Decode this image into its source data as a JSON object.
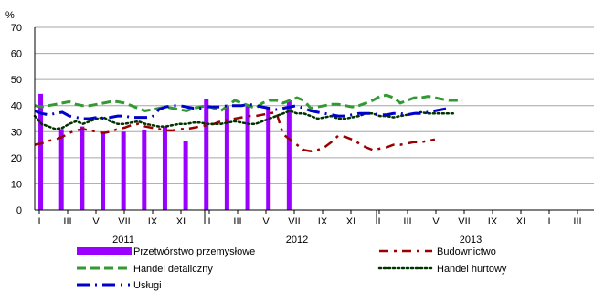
{
  "chart_data": {
    "type": "bar+line",
    "ylabel": "%",
    "ylim": [
      0,
      70
    ],
    "yticks": [
      0,
      10,
      20,
      30,
      40,
      50,
      60,
      70
    ],
    "grid": "horizontal",
    "month_ticks": [
      "I",
      "III",
      "V",
      "VII",
      "IX",
      "XI",
      "I",
      "III",
      "V",
      "VII",
      "IX",
      "XI",
      "I",
      "III",
      "V",
      "VII",
      "IX",
      "XI",
      "I",
      "III"
    ],
    "years": [
      "2011",
      "2012",
      "2013"
    ],
    "legend_position": "bottom",
    "bar_series": {
      "name": "Przetwórstwo przemysłowe",
      "color": "#9900ff",
      "points": [
        {
          "x": 1,
          "value": 44.5
        },
        {
          "x": 4,
          "value": 31
        },
        {
          "x": 7,
          "value": 32
        },
        {
          "x": 10,
          "value": 30
        },
        {
          "x": 13,
          "value": 30
        },
        {
          "x": 16,
          "value": 30.5
        },
        {
          "x": 19,
          "value": 32
        },
        {
          "x": 22,
          "value": 26.5
        },
        {
          "x": 25,
          "value": 42.5
        },
        {
          "x": 28,
          "value": 40
        },
        {
          "x": 31,
          "value": 40.5
        },
        {
          "x": 34,
          "value": 39.5
        },
        {
          "x": 37,
          "value": 42
        }
      ]
    },
    "line_series": [
      {
        "name": "Budownictwo",
        "color": "#990000",
        "dash": "10,6,3,6",
        "width": 2.5,
        "values": [
          25,
          25.5,
          26.5,
          27,
          28,
          29.5,
          30.5,
          31,
          30.5,
          30,
          29.5,
          30,
          31,
          31.5,
          32.5,
          33,
          32,
          31.5,
          31,
          30.5,
          30.5,
          31,
          31,
          31.5,
          32,
          32.5,
          33,
          34,
          34.5,
          35,
          35.5,
          36,
          36,
          36.5,
          37,
          37.5,
          29,
          27,
          25,
          23,
          22.5,
          23,
          24,
          26,
          28.5,
          28,
          27,
          25.5,
          24,
          23,
          23.5,
          24,
          25,
          25,
          25.5,
          26,
          26,
          26.5,
          27
        ]
      },
      {
        "name": "Handel detaliczny",
        "color": "#339933",
        "dash": "10,5",
        "width": 3,
        "values": [
          40,
          39.5,
          40,
          40.5,
          41,
          41.5,
          40.5,
          40,
          40,
          40.5,
          41,
          41.5,
          41.5,
          41,
          40,
          39,
          38,
          38.5,
          39,
          39.5,
          39,
          38.5,
          38,
          39,
          39.5,
          40,
          39,
          38,
          40,
          42,
          41,
          40,
          39,
          41,
          42,
          42,
          41,
          42,
          43,
          42,
          39,
          39.5,
          40,
          40.5,
          40.5,
          40,
          39.5,
          40,
          41,
          42,
          43.5,
          44,
          43,
          41,
          42,
          43,
          43,
          43.5,
          43,
          42.5,
          42,
          42,
          42
        ]
      },
      {
        "name": "Handel hurtowy",
        "color": "#003300",
        "dash": "2,3",
        "width": 2.5,
        "values": [
          36,
          33,
          32,
          31,
          31.5,
          33,
          34,
          33,
          34,
          35,
          35.5,
          34,
          33,
          33,
          33.5,
          34,
          33,
          32.5,
          32,
          32,
          32.5,
          33,
          33,
          33.5,
          33.5,
          33,
          33,
          33,
          33.5,
          34,
          33.5,
          33,
          33,
          34,
          35,
          36,
          37,
          38,
          37,
          37,
          36,
          35,
          35.5,
          36,
          35,
          35,
          35.5,
          36,
          37,
          37,
          36,
          36,
          35.5,
          36,
          36.5,
          37,
          37.5,
          37,
          37,
          37,
          37,
          37
        ]
      },
      {
        "name": "Usługi",
        "color": "#0000cc",
        "dash": "14,6,2,6",
        "width": 3,
        "values": [
          38,
          37,
          36.5,
          37,
          37.5,
          36,
          35.5,
          35,
          35,
          35.5,
          35,
          35.5,
          36,
          36,
          35.5,
          35.5,
          35.5,
          35.5,
          38.5,
          39.5,
          40,
          40,
          39.5,
          39,
          39,
          39.5,
          39.5,
          39.5,
          40,
          40,
          40,
          40.5,
          40,
          39.5,
          39,
          38.5,
          39,
          39.5,
          40,
          39,
          38,
          37.5,
          37,
          36.5,
          36,
          36,
          36.5,
          37,
          37,
          37,
          36.5,
          36.5,
          37,
          37,
          36.5,
          37,
          37,
          37.5,
          38,
          38.5,
          39
        ]
      }
    ]
  },
  "legend": [
    {
      "label": "Przetwórstwo przemysłowe",
      "style": "bar",
      "color": "#9900ff"
    },
    {
      "label": "Budownictwo",
      "style": "dashdot",
      "color": "#990000"
    },
    {
      "label": "Handel detaliczny",
      "style": "dash",
      "color": "#339933"
    },
    {
      "label": "Handel hurtowy",
      "style": "dot",
      "color": "#003300"
    },
    {
      "label": "Usługi",
      "style": "dashdot",
      "color": "#0000cc"
    }
  ]
}
